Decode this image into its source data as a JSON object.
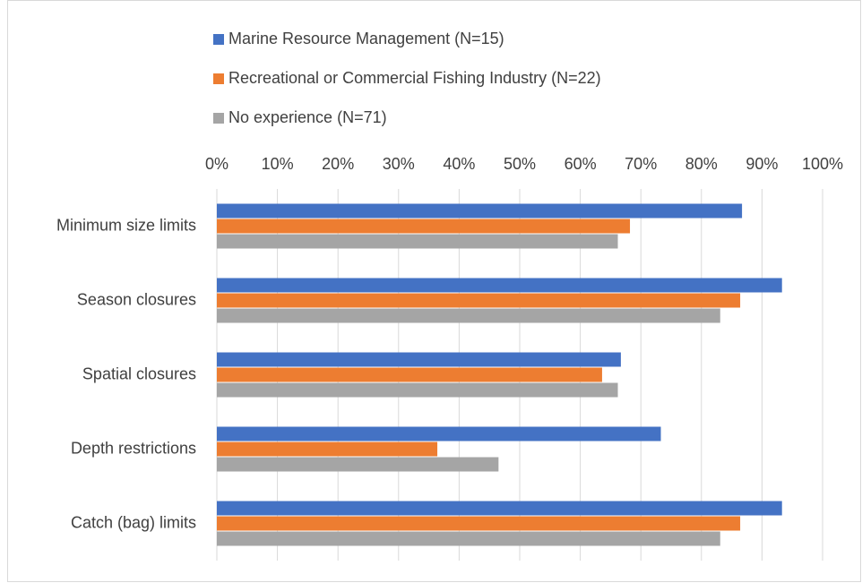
{
  "chart_data": {
    "type": "hbar",
    "categories": [
      "Minimum size limits",
      "Season closures",
      "Spatial closures",
      "Depth restrictions",
      "Catch (bag) limits"
    ],
    "series": [
      {
        "name": "Marine Resource Management (N=15)",
        "color": "#4472c4",
        "values": [
          86.7,
          93.3,
          66.7,
          73.3,
          93.3
        ]
      },
      {
        "name": "Recreational or Commercial Fishing Industry (N=22)",
        "color": "#ed7d31",
        "values": [
          68.2,
          86.4,
          63.6,
          36.4,
          86.4
        ]
      },
      {
        "name": "No experience (N=71)",
        "color": "#a5a5a5",
        "values": [
          66.2,
          83.1,
          66.2,
          46.5,
          83.1
        ]
      }
    ],
    "xlim": [
      0,
      100
    ],
    "xticks": [
      {
        "value": 0,
        "label": "0%"
      },
      {
        "value": 10,
        "label": "10%"
      },
      {
        "value": 20,
        "label": "20%"
      },
      {
        "value": 30,
        "label": "30%"
      },
      {
        "value": 40,
        "label": "40%"
      },
      {
        "value": 50,
        "label": "50%"
      },
      {
        "value": 60,
        "label": "60%"
      },
      {
        "value": 70,
        "label": "70%"
      },
      {
        "value": 80,
        "label": "80%"
      },
      {
        "value": 90,
        "label": "90%"
      },
      {
        "value": 100,
        "label": "100%"
      }
    ],
    "grid": true,
    "legend": "top"
  }
}
